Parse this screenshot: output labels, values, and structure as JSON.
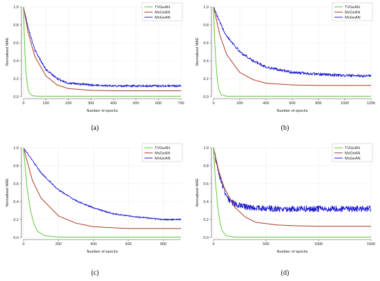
{
  "figure": {
    "captions": [
      "(a)",
      "(b)",
      "(c)",
      "(d)"
    ]
  },
  "chart_data": [
    {
      "type": "line",
      "xlabel": "Number of epochs",
      "ylabel": "Normalised MAE",
      "xlim": [
        0,
        700
      ],
      "ylim": [
        0.0,
        1.0
      ],
      "xticks": [
        0,
        100,
        200,
        300,
        400,
        500,
        600,
        700
      ],
      "yticks": [
        0.0,
        0.2,
        0.4,
        0.6,
        0.8,
        1.0
      ],
      "legend_position": "top-right",
      "grid": true,
      "series": [
        {
          "name": "TVGeAN",
          "color": "#5ec937",
          "noise": 0.0,
          "x": [
            0,
            5,
            10,
            15,
            20,
            25,
            30,
            40,
            60,
            100,
            700
          ],
          "y": [
            1.0,
            0.56,
            0.31,
            0.17,
            0.09,
            0.05,
            0.03,
            0.01,
            0.005,
            0.005,
            0.005
          ]
        },
        {
          "name": "MxGeAN",
          "color": "#a93a1f",
          "noise": 0.0,
          "x": [
            0,
            20,
            50,
            100,
            150,
            200,
            300,
            400,
            500,
            600,
            700
          ],
          "y": [
            1.0,
            0.72,
            0.45,
            0.23,
            0.13,
            0.09,
            0.07,
            0.065,
            0.065,
            0.065,
            0.065
          ]
        },
        {
          "name": "MnGeAN",
          "color": "#1c1ccf",
          "noise": 0.012,
          "x": [
            0,
            20,
            50,
            100,
            150,
            200,
            300,
            400,
            500,
            600,
            700
          ],
          "y": [
            1.0,
            0.78,
            0.52,
            0.3,
            0.2,
            0.15,
            0.13,
            0.12,
            0.12,
            0.12,
            0.12
          ]
        }
      ]
    },
    {
      "type": "line",
      "xlabel": "Number of epochs",
      "ylabel": "Normalised MAE",
      "xlim": [
        0,
        1200
      ],
      "ylim": [
        0.0,
        1.0
      ],
      "xticks": [
        0,
        200,
        400,
        600,
        800,
        1000,
        1200
      ],
      "yticks": [
        0.0,
        0.2,
        0.4,
        0.6,
        0.8,
        1.0
      ],
      "legend_position": "top-right",
      "grid": true,
      "series": [
        {
          "name": "TVGeAN",
          "color": "#5ec937",
          "noise": 0.0,
          "x": [
            0,
            10,
            20,
            30,
            40,
            60,
            100,
            1200
          ],
          "y": [
            1.0,
            0.6,
            0.35,
            0.18,
            0.08,
            0.02,
            0.005,
            0.005
          ]
        },
        {
          "name": "MxGeAN",
          "color": "#a93a1f",
          "noise": 0.0,
          "x": [
            0,
            50,
            100,
            200,
            300,
            400,
            600,
            800,
            1000,
            1200
          ],
          "y": [
            1.0,
            0.68,
            0.47,
            0.27,
            0.19,
            0.15,
            0.13,
            0.125,
            0.125,
            0.125
          ]
        },
        {
          "name": "MnGeAN",
          "color": "#1c1ccf",
          "noise": 0.015,
          "x": [
            0,
            50,
            100,
            200,
            300,
            400,
            600,
            800,
            1000,
            1200
          ],
          "y": [
            1.0,
            0.82,
            0.68,
            0.5,
            0.4,
            0.33,
            0.27,
            0.25,
            0.235,
            0.23
          ]
        }
      ]
    },
    {
      "type": "line",
      "xlabel": "Number of epochs",
      "ylabel": "Normalised MAE",
      "xlim": [
        0,
        900
      ],
      "ylim": [
        0.0,
        1.0
      ],
      "xticks": [
        0,
        200,
        400,
        600,
        800
      ],
      "yticks": [
        0.0,
        0.2,
        0.4,
        0.6,
        0.8,
        1.0
      ],
      "legend_position": "top-right",
      "grid": true,
      "series": [
        {
          "name": "TVGeAN",
          "color": "#5ec937",
          "noise": 0.0,
          "x": [
            0,
            20,
            40,
            60,
            80,
            120,
            200,
            900
          ],
          "y": [
            1.0,
            0.56,
            0.3,
            0.15,
            0.07,
            0.02,
            0.005,
            0.005
          ]
        },
        {
          "name": "MxGeAN",
          "color": "#a93a1f",
          "noise": 0.0,
          "x": [
            0,
            50,
            100,
            200,
            300,
            400,
            500,
            600,
            900
          ],
          "y": [
            1.0,
            0.64,
            0.44,
            0.24,
            0.16,
            0.12,
            0.11,
            0.1,
            0.1
          ]
        },
        {
          "name": "MnGeAN",
          "color": "#1c1ccf",
          "noise": 0.008,
          "x": [
            0,
            100,
            200,
            300,
            400,
            500,
            600,
            700,
            800,
            900
          ],
          "y": [
            1.0,
            0.72,
            0.53,
            0.41,
            0.33,
            0.27,
            0.24,
            0.22,
            0.2,
            0.2
          ]
        }
      ]
    },
    {
      "type": "line",
      "xlabel": "Number of epochs",
      "ylabel": "Normalised MAE",
      "xlim": [
        0,
        1500
      ],
      "ylim": [
        0.0,
        1.0
      ],
      "xticks": [
        0,
        500,
        1000,
        1500
      ],
      "yticks": [
        0.0,
        0.2,
        0.4,
        0.6,
        0.8,
        1.0
      ],
      "legend_position": "top-right",
      "grid": true,
      "series": [
        {
          "name": "TVGeAN",
          "color": "#5ec937",
          "noise": 0.0,
          "x": [
            0,
            20,
            40,
            60,
            80,
            120,
            200,
            1500
          ],
          "y": [
            1.0,
            0.6,
            0.35,
            0.18,
            0.08,
            0.02,
            0.005,
            0.005
          ]
        },
        {
          "name": "MxGeAN",
          "color": "#a93a1f",
          "noise": 0.0,
          "x": [
            0,
            50,
            100,
            200,
            300,
            400,
            600,
            800,
            1000,
            1500
          ],
          "y": [
            1.0,
            0.74,
            0.56,
            0.34,
            0.23,
            0.17,
            0.14,
            0.13,
            0.125,
            0.125
          ]
        },
        {
          "name": "MnGeAN",
          "color": "#1c1ccf",
          "noise": 0.035,
          "x": [
            0,
            50,
            100,
            150,
            200,
            300,
            400,
            600,
            800,
            1000,
            1500
          ],
          "y": [
            1.0,
            0.72,
            0.53,
            0.42,
            0.37,
            0.34,
            0.33,
            0.32,
            0.32,
            0.32,
            0.32
          ]
        }
      ]
    }
  ]
}
